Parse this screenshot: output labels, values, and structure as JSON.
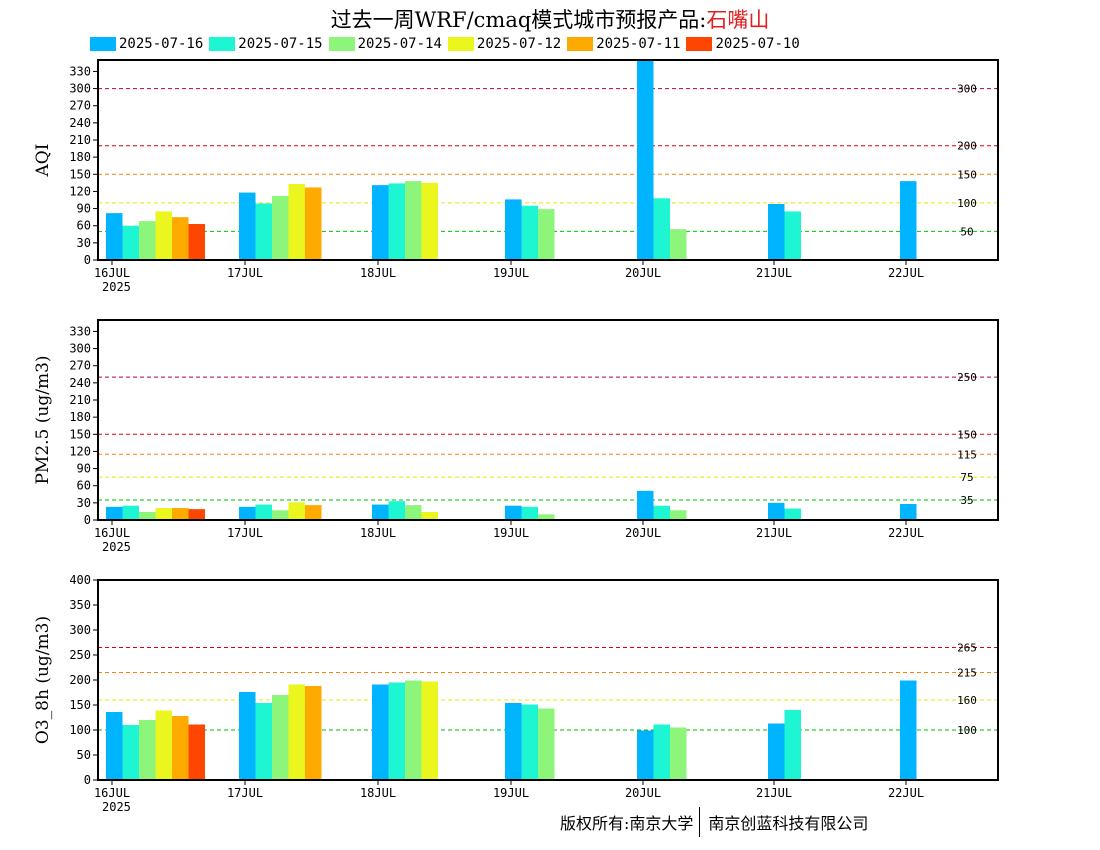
{
  "title": {
    "prefix": "过去一周WRF/cmaq模式城市预报产品:",
    "station": "石嘴山",
    "station_color": "#e02020"
  },
  "legend": [
    {
      "label": "2025-07-16",
      "color": "#00b4ff"
    },
    {
      "label": "2025-07-15",
      "color": "#1ef5d2"
    },
    {
      "label": "2025-07-14",
      "color": "#8cf57a"
    },
    {
      "label": "2025-07-12",
      "color": "#ebf51e"
    },
    {
      "label": "2025-07-11",
      "color": "#ffaa00"
    },
    {
      "label": "2025-07-10",
      "color": "#ff4600"
    }
  ],
  "footer": {
    "left": "版权所有:南京大学",
    "right": "南京创蓝科技有限公司"
  },
  "chart_data": [
    {
      "type": "bar",
      "ylabel": "AQI",
      "ylim": [
        0,
        350
      ],
      "yticks": [
        0,
        30,
        60,
        90,
        120,
        150,
        180,
        210,
        240,
        270,
        300,
        330
      ],
      "x_ticks": [
        "16JUL",
        "17JUL",
        "18JUL",
        "19JUL",
        "20JUL",
        "21JUL",
        "22JUL"
      ],
      "x_year": "2025",
      "thresholds": [
        {
          "value": 300,
          "label": "300",
          "color": "#b00040"
        },
        {
          "value": 200,
          "label": "200",
          "color": "#e00000"
        },
        {
          "value": 150,
          "label": "150",
          "color": "#ff8000"
        },
        {
          "value": 100,
          "label": "100",
          "color": "#e8e800"
        },
        {
          "value": 50,
          "label": "50",
          "color": "#00c000"
        }
      ],
      "series": [
        {
          "name": "2025-07-16",
          "values": [
            82,
            118,
            131,
            106,
            350,
            98,
            138
          ]
        },
        {
          "name": "2025-07-15",
          "values": [
            60,
            99,
            134,
            95,
            108,
            85,
            null
          ]
        },
        {
          "name": "2025-07-14",
          "values": [
            68,
            112,
            138,
            89,
            54,
            null,
            null
          ]
        },
        {
          "name": "2025-07-12",
          "values": [
            85,
            133,
            135,
            null,
            null,
            null,
            null
          ]
        },
        {
          "name": "2025-07-11",
          "values": [
            75,
            127,
            null,
            null,
            null,
            null,
            null
          ]
        },
        {
          "name": "2025-07-10",
          "values": [
            63,
            null,
            null,
            null,
            null,
            null,
            null
          ]
        }
      ]
    },
    {
      "type": "bar",
      "ylabel": "PM2.5 (ug/m3)",
      "ylim": [
        0,
        350
      ],
      "yticks": [
        0,
        30,
        60,
        90,
        120,
        150,
        180,
        210,
        240,
        270,
        300,
        330
      ],
      "x_ticks": [
        "16JUL",
        "17JUL",
        "18JUL",
        "19JUL",
        "20JUL",
        "21JUL",
        "22JUL"
      ],
      "x_year": "2025",
      "thresholds": [
        {
          "value": 250,
          "label": "250",
          "color": "#b00040"
        },
        {
          "value": 150,
          "label": "150",
          "color": "#e00000"
        },
        {
          "value": 115,
          "label": "115",
          "color": "#ff8000"
        },
        {
          "value": 75,
          "label": "75",
          "color": "#e8e800"
        },
        {
          "value": 35,
          "label": "35",
          "color": "#00c000"
        }
      ],
      "series": [
        {
          "name": "2025-07-16",
          "values": [
            23,
            23,
            27,
            25,
            51,
            30,
            28
          ]
        },
        {
          "name": "2025-07-15",
          "values": [
            25,
            27,
            33,
            23,
            25,
            20,
            null
          ]
        },
        {
          "name": "2025-07-14",
          "values": [
            14,
            17,
            26,
            10,
            17,
            null,
            null
          ]
        },
        {
          "name": "2025-07-12",
          "values": [
            21,
            31,
            14,
            null,
            null,
            null,
            null
          ]
        },
        {
          "name": "2025-07-11",
          "values": [
            21,
            26,
            null,
            null,
            null,
            null,
            null
          ]
        },
        {
          "name": "2025-07-10",
          "values": [
            19,
            null,
            null,
            null,
            null,
            null,
            null
          ]
        }
      ]
    },
    {
      "type": "bar",
      "ylabel": "O3_8h (ug/m3)",
      "ylim": [
        0,
        400
      ],
      "yticks": [
        0,
        50,
        100,
        150,
        200,
        250,
        300,
        350,
        400
      ],
      "x_ticks": [
        "16JUL",
        "17JUL",
        "18JUL",
        "19JUL",
        "20JUL",
        "21JUL",
        "22JUL"
      ],
      "x_year": "2025",
      "thresholds": [
        {
          "value": 265,
          "label": "265",
          "color": "#e00000"
        },
        {
          "value": 215,
          "label": "215",
          "color": "#ff8000"
        },
        {
          "value": 160,
          "label": "160",
          "color": "#e8e800"
        },
        {
          "value": 100,
          "label": "100",
          "color": "#00c000"
        }
      ],
      "series": [
        {
          "name": "2025-07-16",
          "values": [
            136,
            176,
            191,
            154,
            99,
            113,
            199
          ]
        },
        {
          "name": "2025-07-15",
          "values": [
            110,
            154,
            195,
            151,
            111,
            140,
            null
          ]
        },
        {
          "name": "2025-07-14",
          "values": [
            120,
            170,
            199,
            143,
            105,
            null,
            null
          ]
        },
        {
          "name": "2025-07-12",
          "values": [
            139,
            191,
            197,
            null,
            null,
            null,
            null
          ]
        },
        {
          "name": "2025-07-11",
          "values": [
            128,
            188,
            null,
            null,
            null,
            null,
            null
          ]
        },
        {
          "name": "2025-07-10",
          "values": [
            111,
            null,
            null,
            null,
            null,
            null,
            null
          ]
        }
      ]
    }
  ]
}
